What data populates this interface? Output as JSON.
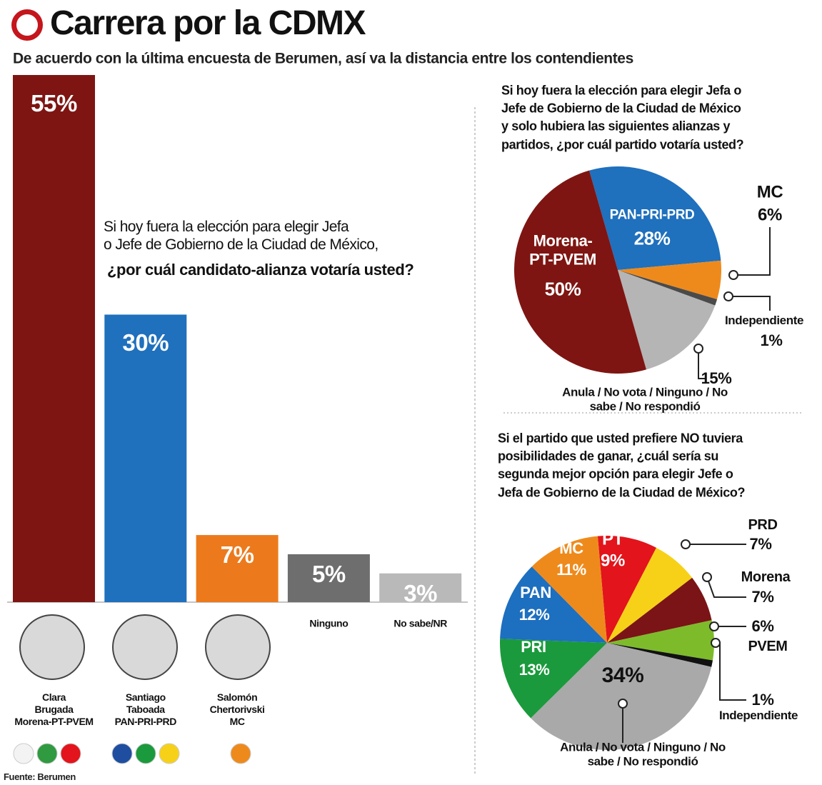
{
  "header": {
    "title": "Carrera por la CDMX",
    "subtitle": "De acuerdo con la última encuesta de Berumen, así va la distancia entre los contendientes"
  },
  "chart_data": [
    {
      "type": "bar",
      "annotation": "Si hoy fuera la elección para elegir Jefa\no Jefe de Gobierno de la Ciudad de México,",
      "annotation_emphasis": "¿por cuál candidato-alianza votaría usted?",
      "categories": [
        "Clara\nBrugada\nMorena-PT-PVEM",
        "Santiago\nTaboada\nPAN-PRI-PRD",
        "Salomón\nChertorivski\nMC",
        "Ninguno",
        "No sabe/NR"
      ],
      "values": [
        55,
        30,
        7,
        5,
        3
      ],
      "value_labels": [
        "55%",
        "30%",
        "7%",
        "5%",
        "3%"
      ],
      "colors": [
        "#7e1512",
        "#1f70bd",
        "#ec7a1c",
        "#6e6e6e",
        "#b9b9b9"
      ]
    },
    {
      "type": "pie",
      "title": "Si hoy fuera la elección para elegir Jefa o\nJefe de Gobierno de la Ciudad de México\ny solo hubiera las siguientes alianzas y\npartidos,  ¿por cuál partido votaría usted?",
      "categories": [
        "PAN-PRI-PRD",
        "MC",
        "Independiente",
        "Anula / No vota / Ninguno / No sabe / No respondió",
        "Morena-\nPT-PVEM"
      ],
      "values": [
        28,
        6,
        1,
        15,
        50
      ],
      "value_labels": [
        "28%",
        "6%",
        "1%",
        "15%",
        "50%"
      ],
      "colors": [
        "#1f70bd",
        "#ee8a1c",
        "#4a4a4a",
        "#b5b5b5",
        "#7e1512"
      ]
    },
    {
      "type": "pie",
      "title": "Si el partido que usted prefiere NO tuviera\nposibilidades de ganar, ¿cuál sería su\nsegunda mejor opción para elegir Jefe o\nJefa de Gobierno de la Ciudad de México?",
      "categories": [
        "PT",
        "PRD",
        "Morena",
        "PVEM",
        "Independiente",
        "Anula / No vota / Ninguno / No sabe / No respondió",
        "PRI",
        "PAN",
        "MC"
      ],
      "values": [
        9,
        7,
        7,
        6,
        1,
        34,
        13,
        12,
        11
      ],
      "value_labels": [
        "9%",
        "7%",
        "7%",
        "6%",
        "1%",
        "34%",
        "13%",
        "12%",
        "11%"
      ],
      "colors": [
        "#e3141b",
        "#f7d117",
        "#7b1416",
        "#7dbb2b",
        "#111111",
        "#a9a9a9",
        "#1a9a3c",
        "#1d6fbf",
        "#ee8a1c"
      ]
    }
  ],
  "source": "Fuente: Berumen"
}
